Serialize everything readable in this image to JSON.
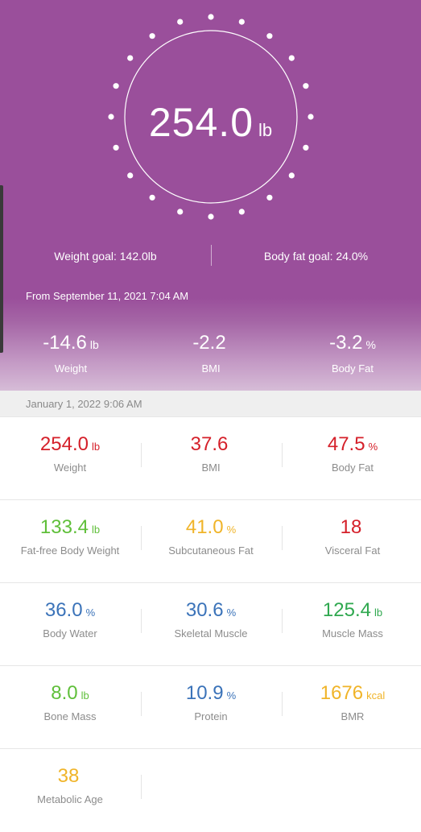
{
  "current_weight": {
    "value": "254.0",
    "unit": "lb"
  },
  "goals": {
    "weight": "Weight goal: 142.0lb",
    "body_fat": "Body fat goal: 24.0%"
  },
  "since": {
    "label": "From September 11, 2021 7:04 AM",
    "changes": [
      {
        "value": "-14.6",
        "unit": "lb",
        "label": "Weight"
      },
      {
        "value": "-2.2",
        "unit": "",
        "label": "BMI"
      },
      {
        "value": "-3.2",
        "unit": "%",
        "label": "Body Fat"
      }
    ]
  },
  "measurement_date": "January 1, 2022 9:06 AM",
  "metrics": [
    {
      "value": "254.0",
      "unit": "lb",
      "label": "Weight",
      "color": "#d5202a"
    },
    {
      "value": "37.6",
      "unit": "",
      "label": "BMI",
      "color": "#d5202a"
    },
    {
      "value": "47.5",
      "unit": "%",
      "label": "Body Fat",
      "color": "#d5202a"
    },
    {
      "value": "133.4",
      "unit": "lb",
      "label": "Fat-free Body Weight",
      "color": "#5fbf3a"
    },
    {
      "value": "41.0",
      "unit": "%",
      "label": "Subcutaneous Fat",
      "color": "#f0b429"
    },
    {
      "value": "18",
      "unit": "",
      "label": "Visceral Fat",
      "color": "#d5202a"
    },
    {
      "value": "36.0",
      "unit": "%",
      "label": "Body Water",
      "color": "#3b73b9"
    },
    {
      "value": "30.6",
      "unit": "%",
      "label": "Skeletal Muscle",
      "color": "#3b73b9"
    },
    {
      "value": "125.4",
      "unit": "lb",
      "label": "Muscle Mass",
      "color": "#2fa84f"
    },
    {
      "value": "8.0",
      "unit": "lb",
      "label": "Bone Mass",
      "color": "#5fbf3a"
    },
    {
      "value": "10.9",
      "unit": "%",
      "label": "Protein",
      "color": "#3b73b9"
    },
    {
      "value": "1676",
      "unit": "kcal",
      "label": "BMR",
      "color": "#f0b429"
    },
    {
      "value": "38",
      "unit": "",
      "label": "Metabolic Age",
      "color": "#f0b429"
    }
  ]
}
